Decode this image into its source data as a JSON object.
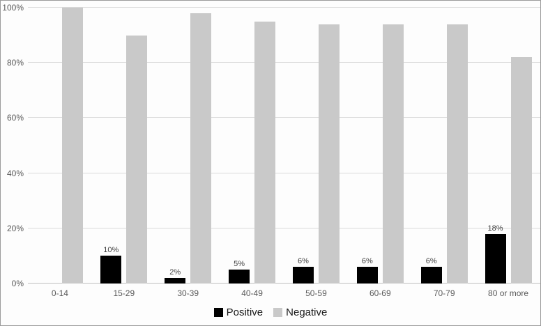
{
  "chart_data": {
    "type": "bar",
    "title": "",
    "xlabel": "",
    "ylabel": "",
    "categories": [
      "0-14",
      "15-29",
      "30-39",
      "40-49",
      "50-59",
      "60-69",
      "70-79",
      "80 or more"
    ],
    "series": [
      {
        "name": "Positive",
        "color": "#000000",
        "values": [
          0,
          10,
          2,
          5,
          6,
          6,
          6,
          18
        ],
        "data_labels": [
          "",
          "10%",
          "2%",
          "5%",
          "6%",
          "6%",
          "6%",
          "18%"
        ]
      },
      {
        "name": "Negative",
        "color": "#c9c9c9",
        "values": [
          100,
          90,
          98,
          95,
          94,
          94,
          94,
          82
        ],
        "data_labels": [
          "",
          "",
          "",
          "",
          "",
          "",
          "",
          ""
        ]
      }
    ],
    "ylim": [
      0,
      100
    ],
    "y_ticks": [
      {
        "value": 0,
        "label": "0%"
      },
      {
        "value": 20,
        "label": "20%"
      },
      {
        "value": 40,
        "label": "40%"
      },
      {
        "value": 60,
        "label": "60%"
      },
      {
        "value": 80,
        "label": "80%"
      },
      {
        "value": 100,
        "label": "100%"
      }
    ],
    "grid": true,
    "legend_position": "bottom",
    "legend": [
      {
        "label": "Positive",
        "color": "#000000"
      },
      {
        "label": "Negative",
        "color": "#c9c9c9"
      }
    ]
  },
  "colors": {
    "background": "#fdfdfd",
    "border": "#9b9b9b",
    "gridline": "#d9d9d9",
    "axis_line": "#bfbfbf",
    "tick_label": "#595959",
    "data_label": "#404040",
    "legend_text": "#1a1a1a"
  }
}
